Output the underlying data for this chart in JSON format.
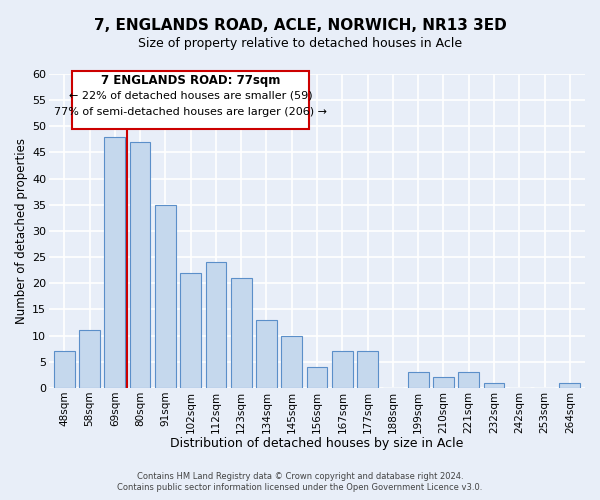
{
  "title": "7, ENGLANDS ROAD, ACLE, NORWICH, NR13 3ED",
  "subtitle": "Size of property relative to detached houses in Acle",
  "xlabel": "Distribution of detached houses by size in Acle",
  "ylabel": "Number of detached properties",
  "bar_labels": [
    "48sqm",
    "58sqm",
    "69sqm",
    "80sqm",
    "91sqm",
    "102sqm",
    "112sqm",
    "123sqm",
    "134sqm",
    "145sqm",
    "156sqm",
    "167sqm",
    "177sqm",
    "188sqm",
    "199sqm",
    "210sqm",
    "221sqm",
    "232sqm",
    "242sqm",
    "253sqm",
    "264sqm"
  ],
  "bar_values": [
    7,
    11,
    48,
    47,
    35,
    22,
    24,
    21,
    13,
    10,
    4,
    7,
    7,
    0,
    3,
    2,
    3,
    1,
    0,
    0,
    1
  ],
  "bar_color": "#c5d8ed",
  "bar_edge_color": "#5b8fc9",
  "marker_line_color": "#cc0000",
  "ylim": [
    0,
    60
  ],
  "yticks": [
    0,
    5,
    10,
    15,
    20,
    25,
    30,
    35,
    40,
    45,
    50,
    55,
    60
  ],
  "annotation_title": "7 ENGLANDS ROAD: 77sqm",
  "annotation_line1": "← 22% of detached houses are smaller (59)",
  "annotation_line2": "77% of semi-detached houses are larger (206) →",
  "footer_line1": "Contains HM Land Registry data © Crown copyright and database right 2024.",
  "footer_line2": "Contains public sector information licensed under the Open Government Licence v3.0.",
  "background_color": "#e8eef8",
  "grid_color": "#ffffff",
  "box_facecolor": "#ffffff",
  "box_edgecolor": "#cc0000"
}
